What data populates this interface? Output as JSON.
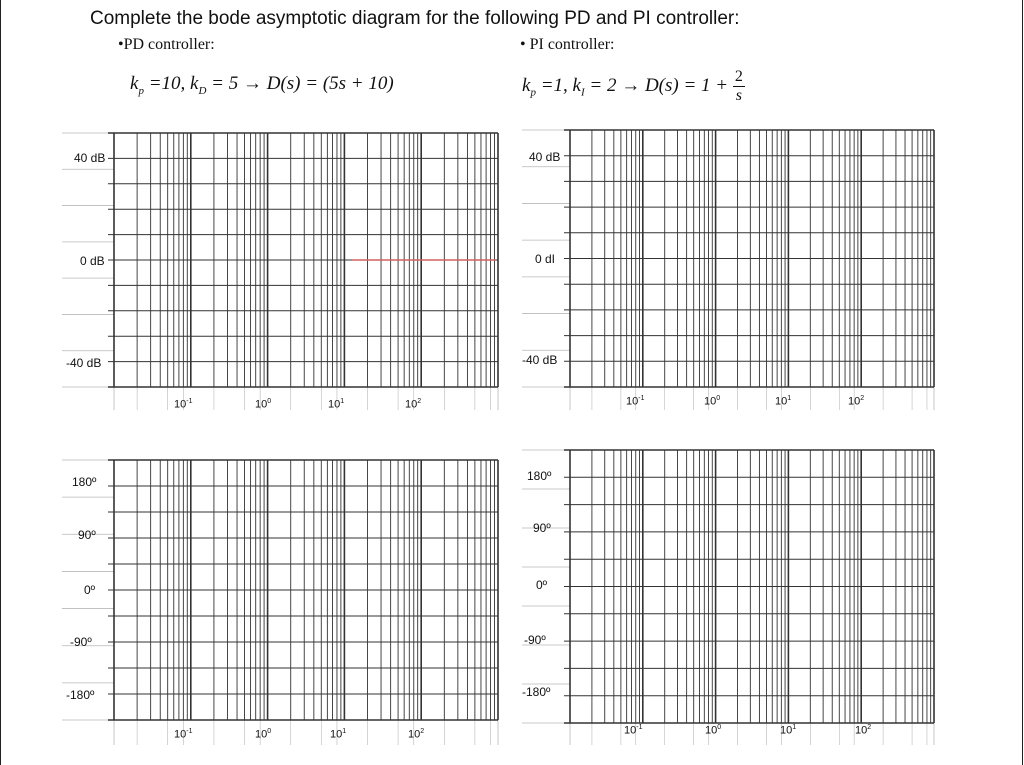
{
  "title": "Complete the bode asymptotic diagram for the following PD and PI controller:",
  "pd": {
    "heading": "•PD controller:",
    "formula": {
      "kp": "k",
      "kp_sub": "p",
      "text1": " =10, k",
      "kd_sub": "D",
      "text2": " = 5 → D(s) = (5s + 10)"
    }
  },
  "pi": {
    "heading": "• PI controller:",
    "formula": {
      "kp": "k",
      "kp_sub": "p",
      "text1": " =1, k",
      "ki_sub": "I",
      "text2": " = 2 → D(s) = 1 + ",
      "frac_num": "2",
      "frac_den": "s"
    }
  },
  "magnitude_labels": [
    "40 dB",
    "0 dB",
    "-40 dB"
  ],
  "magnitude_labels_right": [
    "40 dB",
    "0 dI",
    "-40 dB"
  ],
  "phase_labels": [
    "180º",
    "90º",
    "0º",
    "-90º",
    "-180º"
  ],
  "freq_labels": [
    {
      "base": "10",
      "exp": "-1"
    },
    {
      "base": "10",
      "exp": "0"
    },
    {
      "base": "10",
      "exp": "1"
    },
    {
      "base": "10",
      "exp": "2"
    }
  ],
  "colors": {
    "grid": "#333333",
    "grid_light": "#b8b8b8",
    "accent_line": "#d06060"
  }
}
